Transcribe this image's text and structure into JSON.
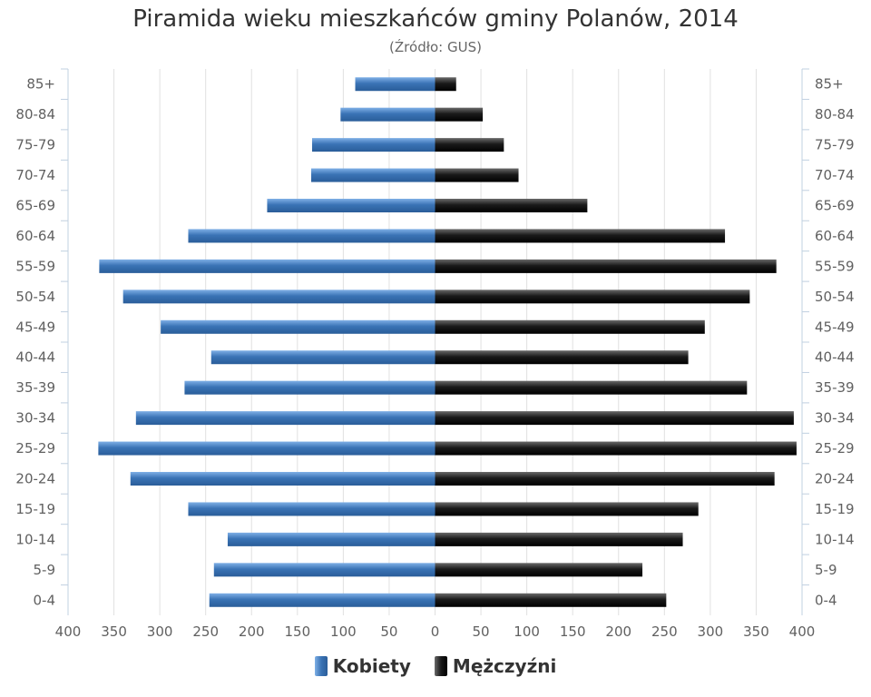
{
  "chart_data": {
    "type": "bar",
    "orientation": "horizontal",
    "title": "Piramida wieku mieszkańców gminy Polanów, 2014",
    "subtitle": "(Źródło: GUS)",
    "categories": [
      "0-4",
      "5-9",
      "10-14",
      "15-19",
      "20-24",
      "25-29",
      "30-34",
      "35-39",
      "40-44",
      "45-49",
      "50-54",
      "55-59",
      "60-64",
      "65-69",
      "70-74",
      "75-79",
      "80-84",
      "85+"
    ],
    "series": [
      {
        "name": "Kobiety",
        "color": "#3a73b5",
        "values": [
          246,
          241,
          226,
          269,
          332,
          367,
          326,
          273,
          244,
          299,
          340,
          366,
          269,
          183,
          135,
          134,
          103,
          87
        ]
      },
      {
        "name": "Mężczyźni",
        "color": "#1a1a1a",
        "values": [
          252,
          226,
          270,
          287,
          370,
          394,
          391,
          340,
          276,
          294,
          343,
          372,
          316,
          166,
          91,
          75,
          52,
          23
        ]
      }
    ],
    "xlim": [
      -400,
      400
    ],
    "x_ticks": [
      "400",
      "350",
      "300",
      "250",
      "200",
      "150",
      "100",
      "50",
      "0",
      "50",
      "100",
      "150",
      "200",
      "250",
      "300",
      "350",
      "400"
    ],
    "grid": true,
    "legend_position": "bottom"
  }
}
